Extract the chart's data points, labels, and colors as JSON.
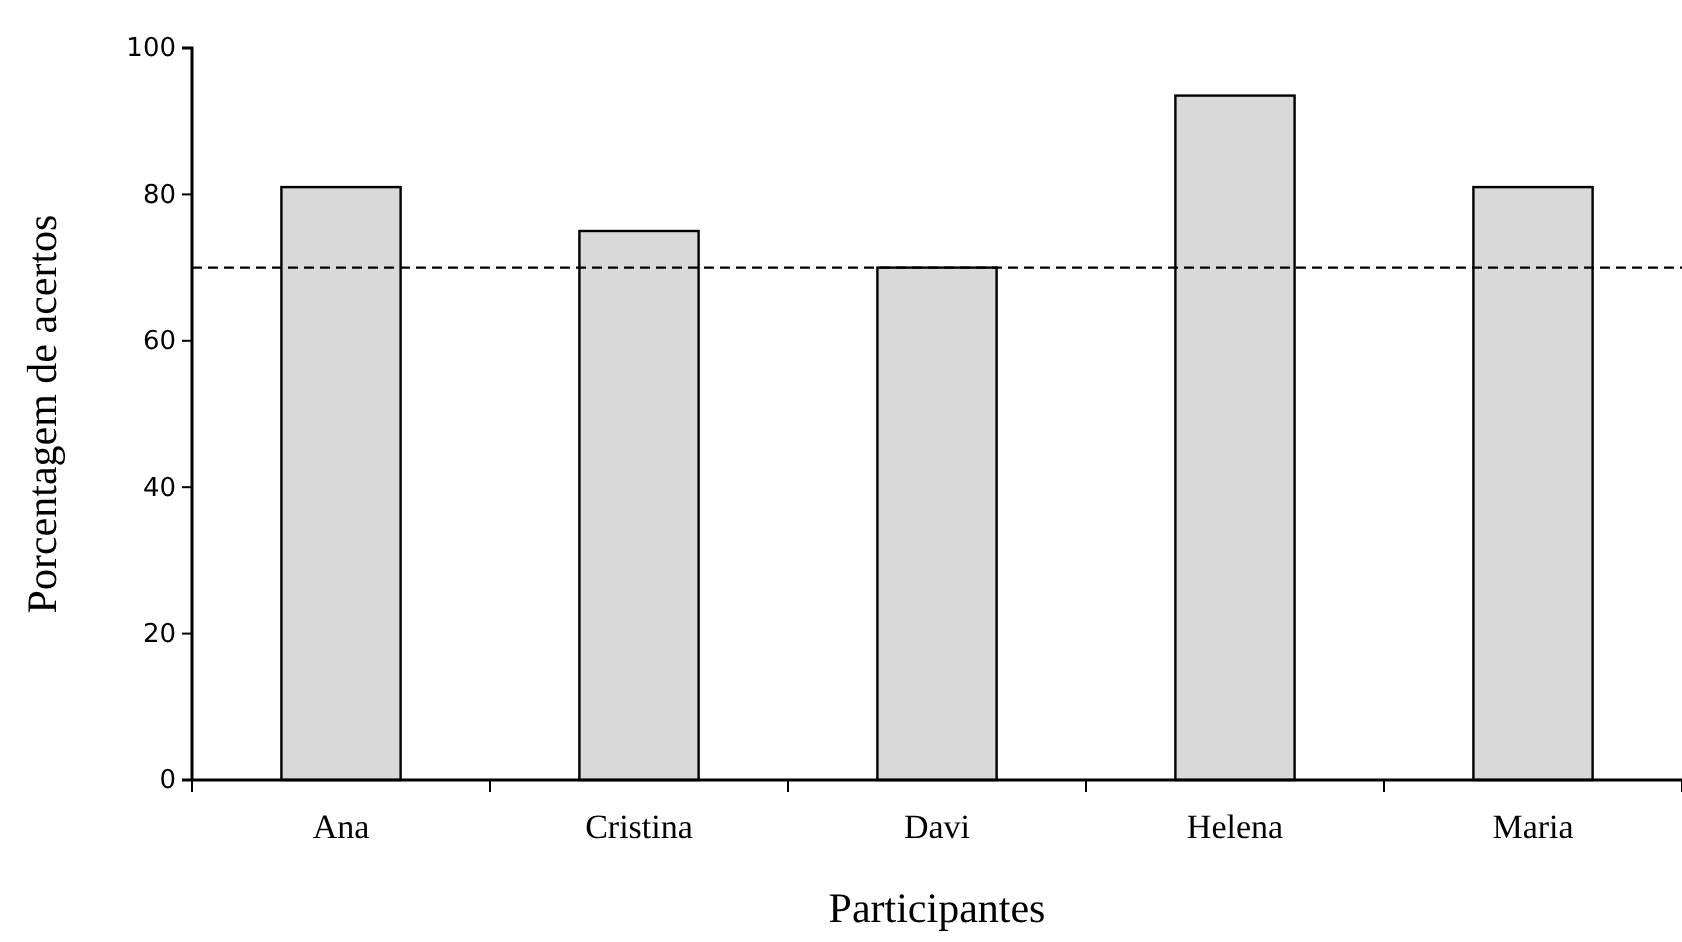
{
  "chart_data": {
    "type": "bar",
    "xlabel": "Participantes",
    "ylabel": "Porcentagem de acertos",
    "categories": [
      "Ana",
      "Cristina",
      "Davi",
      "Helena",
      "Maria"
    ],
    "values": [
      81,
      75,
      70,
      93.5,
      81
    ],
    "color": "#d9d9d9",
    "ylim": [
      0,
      100
    ],
    "yticks": [
      0,
      20,
      40,
      60,
      80,
      100
    ],
    "grid": false,
    "ref_lines": [
      {
        "axis": "y",
        "value": 70,
        "line_style": "dashed",
        "color": "#000000"
      }
    ]
  }
}
